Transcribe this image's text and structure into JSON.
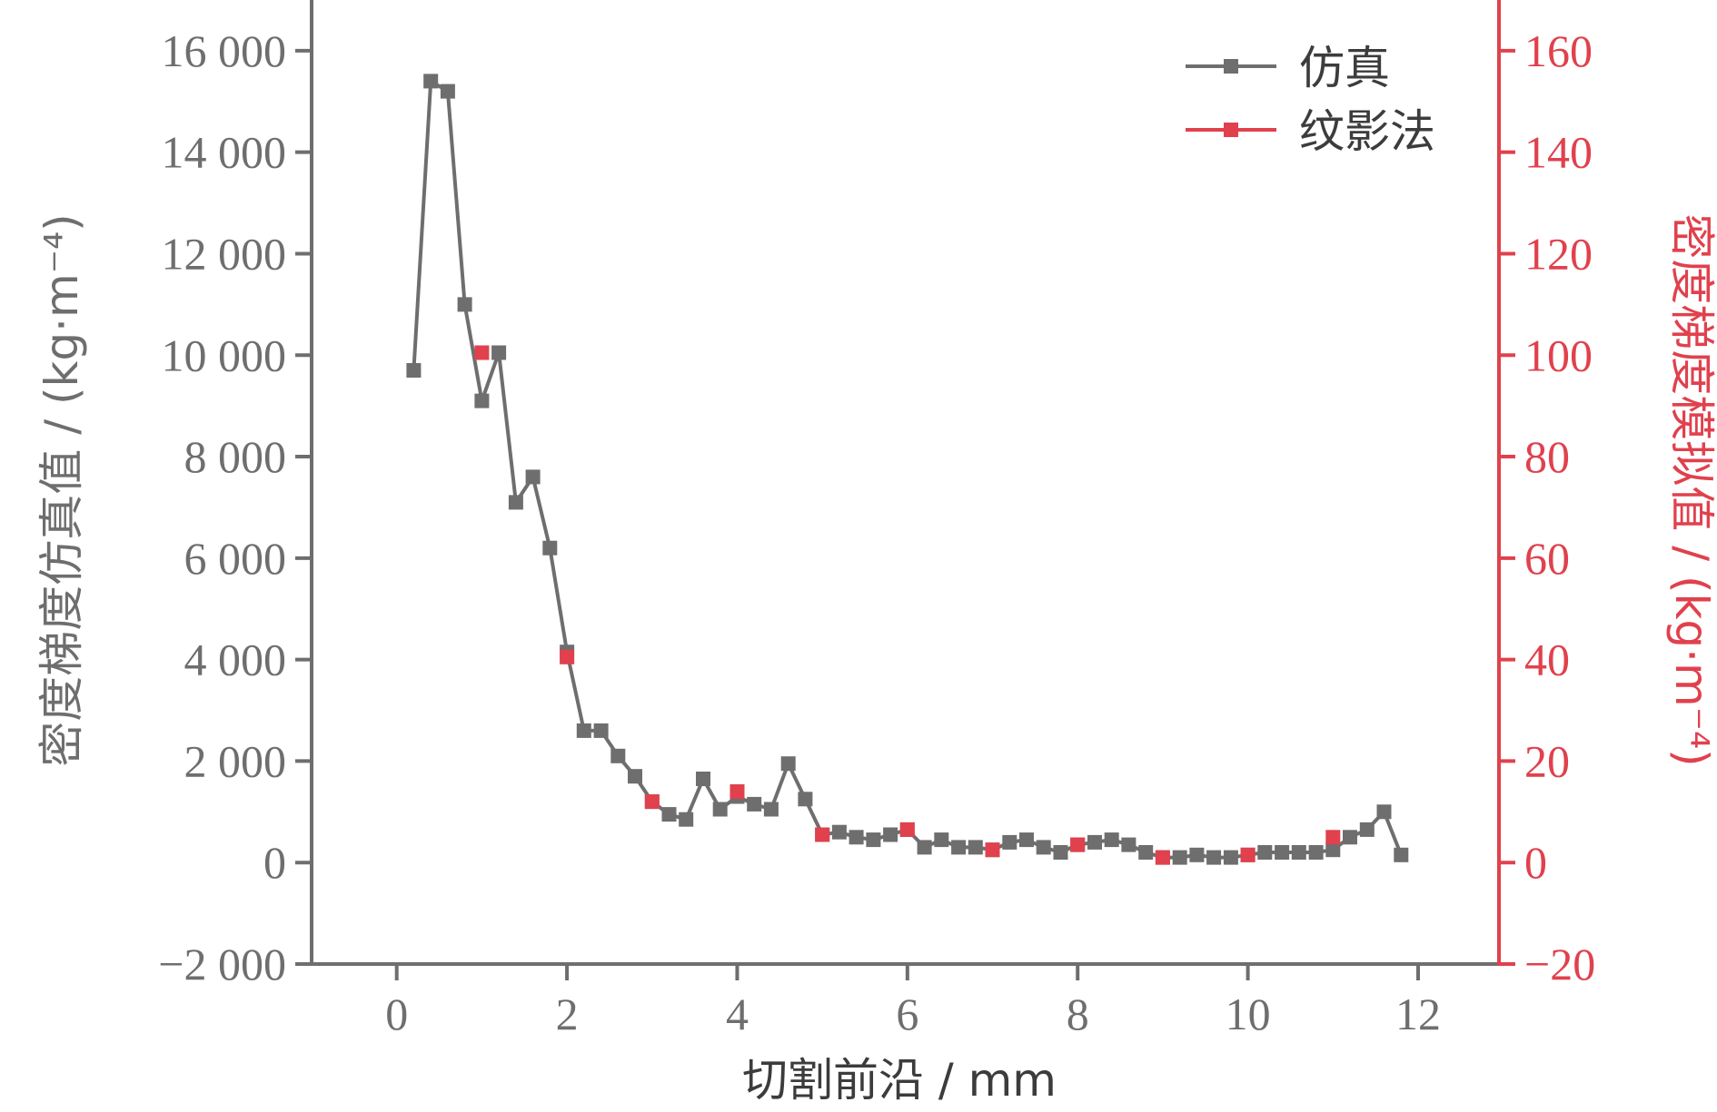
{
  "chart_data": {
    "type": "line",
    "xlabel": "切割前沿 / mm",
    "ylabel_left": "密度梯度仿真值 / (kg·m⁻⁴)",
    "ylabel_right": "密度梯度模拟值 / (kg·m⁻⁴)",
    "xlim": [
      -1,
      12.95
    ],
    "ylim_left": [
      -2000,
      17000
    ],
    "ylim_right": [
      -20,
      170
    ],
    "x_ticks": [
      0,
      2,
      4,
      6,
      8,
      10,
      12
    ],
    "x_tick_labels": [
      "0",
      "2",
      "4",
      "6",
      "8",
      "10",
      "12"
    ],
    "y_left_ticks": [
      -2000,
      0,
      2000,
      4000,
      6000,
      8000,
      10000,
      12000,
      14000,
      16000
    ],
    "y_left_tick_labels": [
      "−2 000",
      "0",
      "2 000",
      "4 000",
      "6 000",
      "8 000",
      "10 000",
      "12 000",
      "14 000",
      "16 000"
    ],
    "y_right_ticks": [
      -20,
      0,
      20,
      40,
      60,
      80,
      100,
      120,
      140,
      160
    ],
    "y_right_tick_labels": [
      "−20",
      "0",
      "20",
      "40",
      "60",
      "80",
      "100",
      "120",
      "140",
      "160"
    ],
    "grid": false,
    "legend_position": "top-right",
    "colors": {
      "simulation": "#6e6e6e",
      "schlieren": "#e0414d",
      "axis_left": "#6e6e6e",
      "axis_right": "#e0414d"
    },
    "series": [
      {
        "name": "仿真",
        "axis": "left",
        "color": "#6e6e6e",
        "x": [
          0.2,
          0.4,
          0.6,
          0.8,
          1.0,
          1.2,
          1.4,
          1.6,
          1.8,
          2.0,
          2.2,
          2.4,
          2.6,
          2.8,
          3.0,
          3.2,
          3.4,
          3.6,
          3.8,
          4.0,
          4.2,
          4.4,
          4.6,
          4.8,
          5.0,
          5.2,
          5.4,
          5.6,
          5.8,
          6.0,
          6.2,
          6.4,
          6.6,
          6.8,
          7.0,
          7.2,
          7.4,
          7.6,
          7.8,
          8.0,
          8.2,
          8.4,
          8.6,
          8.8,
          9.0,
          9.2,
          9.4,
          9.6,
          9.8,
          10.0,
          10.2,
          10.4,
          10.6,
          10.8,
          11.0,
          11.2,
          11.4,
          11.6,
          11.8
        ],
        "values": [
          9700,
          15400,
          15200,
          11000,
          9100,
          10050,
          7100,
          7600,
          6200,
          4150,
          2600,
          2600,
          2100,
          1700,
          1200,
          950,
          850,
          1650,
          1050,
          1300,
          1150,
          1050,
          1950,
          1250,
          550,
          600,
          500,
          450,
          550,
          650,
          300,
          450,
          300,
          300,
          250,
          400,
          450,
          300,
          200,
          350,
          400,
          450,
          350,
          200,
          100,
          100,
          150,
          100,
          100,
          150,
          200,
          200,
          200,
          200,
          250,
          500,
          650,
          1000,
          150
        ]
      },
      {
        "name": "纹影法",
        "axis": "right",
        "color": "#e0414d",
        "x": [
          1.0,
          2.0,
          3.0,
          4.0,
          5.0,
          6.0,
          7.0,
          8.0,
          9.0,
          10.0,
          11.0
        ],
        "values": [
          100.5,
          40.5,
          12,
          14,
          5.5,
          6.5,
          2.5,
          3.5,
          1,
          1.5,
          5
        ]
      }
    ]
  }
}
